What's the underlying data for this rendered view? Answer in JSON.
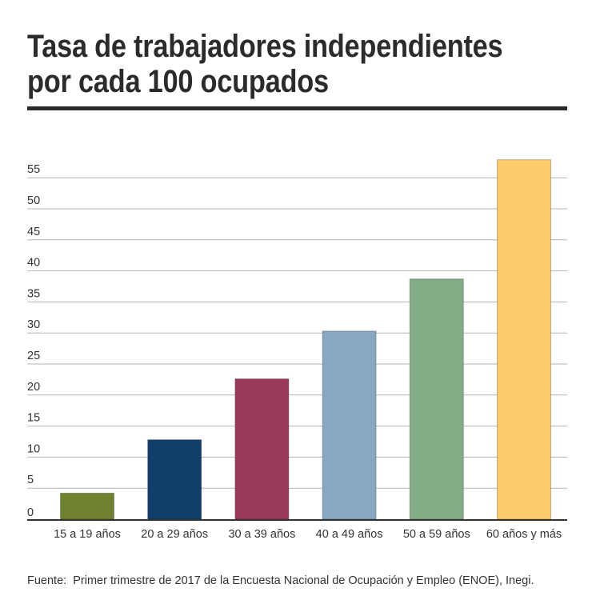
{
  "title": "Tasa de trabajadores independientes\npor cada 100 ocupados",
  "footnote": "Fuente:  Primer trimestre de 2017 de la Encuesta Nacional de Ocupación y Empleo (ENOE), Inegi.",
  "chart_data": {
    "type": "bar",
    "title": "Tasa de trabajadores independientes por cada 100 ocupados",
    "xlabel": "",
    "ylabel": "",
    "categories": [
      "15 a 19 años",
      "20 a 29 años",
      "30 a 39 años",
      "40 a 49 años",
      "50 a 59 años",
      "60 años y más"
    ],
    "values": [
      4.2,
      12.8,
      22.6,
      30.3,
      38.7,
      57.9
    ],
    "colors": [
      "#6e8230",
      "#123f69",
      "#9a3a58",
      "#89a6c2",
      "#84ad85",
      "#fbcb6c"
    ],
    "ylim": [
      0,
      58
    ],
    "yticks": [
      0,
      5,
      10,
      15,
      20,
      25,
      30,
      35,
      40,
      45,
      50,
      55
    ],
    "grid": true,
    "legend": "none"
  }
}
